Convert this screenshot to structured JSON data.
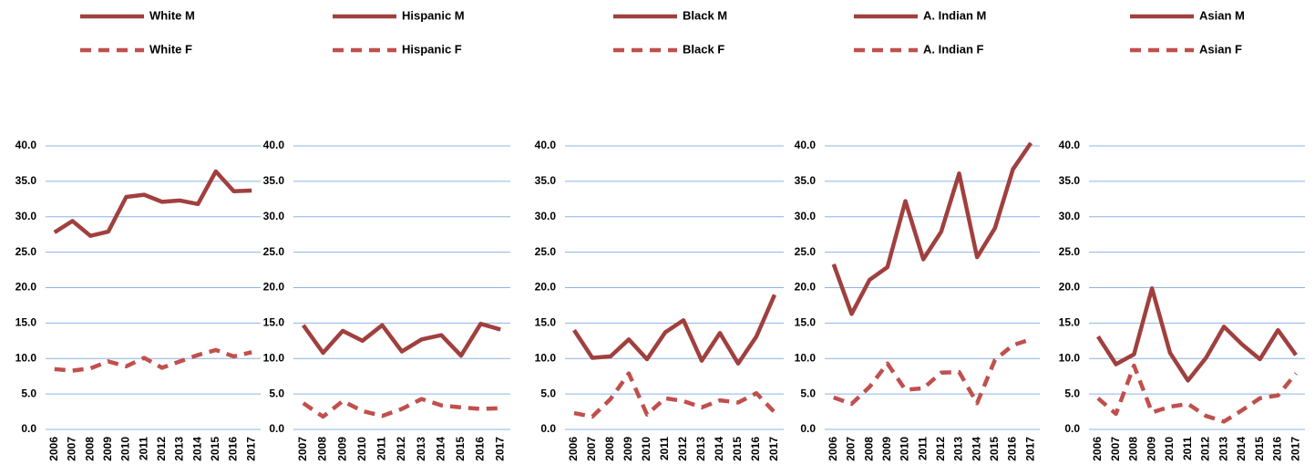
{
  "chart_data": [
    {
      "type": "line",
      "categories": [
        "2006",
        "2007",
        "2008",
        "2009",
        "2010",
        "2011",
        "2012",
        "2013",
        "2014",
        "2015",
        "2016",
        "2017"
      ],
      "series": [
        {
          "name": "White  M",
          "color": "#a0403e",
          "line_style": "solid",
          "values": [
            27.8,
            29.4,
            27.3,
            27.9,
            32.8,
            33.1,
            32.1,
            32.3,
            31.8,
            36.4,
            33.6,
            33.7
          ]
        },
        {
          "name": "White  F",
          "color": "#c0504d",
          "line_style": "dashed",
          "values": [
            8.5,
            8.3,
            8.6,
            9.6,
            8.9,
            10.1,
            8.7,
            9.6,
            10.5,
            11.2,
            10.3,
            10.9
          ]
        }
      ],
      "ylim": [
        0,
        40
      ],
      "yticks": [
        {
          "value": 0,
          "label": "0.0"
        },
        {
          "value": 5,
          "label": "5.0"
        },
        {
          "value": 10,
          "label": "10.0"
        },
        {
          "value": 15,
          "label": "15.0"
        },
        {
          "value": 20,
          "label": "20.0"
        },
        {
          "value": 25,
          "label": "25.0"
        },
        {
          "value": 30,
          "label": "30.0"
        },
        {
          "value": 35,
          "label": "35.0"
        },
        {
          "value": 40,
          "label": "40.0"
        }
      ],
      "grid": true
    },
    {
      "type": "line",
      "categories": [
        "2007",
        "2008",
        "2009",
        "2010",
        "2011",
        "2012",
        "2013",
        "2014",
        "2015",
        "2016",
        "2017"
      ],
      "series": [
        {
          "name": "Hispanic M",
          "color": "#a0403e",
          "line_style": "solid",
          "values": [
            14.7,
            10.8,
            13.9,
            12.5,
            14.7,
            11.0,
            12.7,
            13.3,
            10.4,
            14.9,
            14.1
          ]
        },
        {
          "name": "Hispanic F",
          "color": "#c0504d",
          "line_style": "dashed",
          "values": [
            3.7,
            1.8,
            4.0,
            2.6,
            1.9,
            2.9,
            4.3,
            3.4,
            3.1,
            2.9,
            3.0
          ]
        }
      ],
      "ylim": [
        0,
        40
      ],
      "yticks": [
        {
          "value": 0,
          "label": "0.0"
        },
        {
          "value": 5,
          "label": "5.0"
        },
        {
          "value": 10,
          "label": "10.0"
        },
        {
          "value": 15,
          "label": "15.0"
        },
        {
          "value": 20,
          "label": "20.0"
        },
        {
          "value": 25,
          "label": "25.0"
        },
        {
          "value": 30,
          "label": "30.0"
        },
        {
          "value": 35,
          "label": "35.0"
        },
        {
          "value": 40,
          "label": "40.0"
        }
      ],
      "grid": true
    },
    {
      "type": "line",
      "categories": [
        "2006",
        "2007",
        "2008",
        "2009",
        "2010",
        "2011",
        "2012",
        "2013",
        "2014",
        "2015",
        "2016",
        "2017"
      ],
      "series": [
        {
          "name": "Black  M",
          "color": "#a0403e",
          "line_style": "solid",
          "values": [
            14.0,
            10.1,
            10.3,
            12.7,
            9.9,
            13.7,
            15.4,
            9.7,
            13.6,
            9.3,
            13.1,
            19.0
          ]
        },
        {
          "name": "Black  F",
          "color": "#c0504d",
          "line_style": "dashed",
          "values": [
            2.3,
            1.8,
            4.3,
            7.9,
            2.1,
            4.4,
            4.0,
            3.1,
            4.1,
            3.8,
            5.1,
            2.4
          ]
        }
      ],
      "ylim": [
        0,
        40
      ],
      "yticks": [
        {
          "value": 0,
          "label": "0.0"
        },
        {
          "value": 5,
          "label": "5.0"
        },
        {
          "value": 10,
          "label": "10.0"
        },
        {
          "value": 15,
          "label": "15.0"
        },
        {
          "value": 20,
          "label": "20.0"
        },
        {
          "value": 25,
          "label": "25.0"
        },
        {
          "value": 30,
          "label": "30.0"
        },
        {
          "value": 35,
          "label": "35.0"
        },
        {
          "value": 40,
          "label": "40.0"
        }
      ],
      "grid": true
    },
    {
      "type": "line",
      "categories": [
        "2006",
        "2007",
        "2008",
        "2009",
        "2010",
        "2011",
        "2012",
        "2013",
        "2014",
        "2015",
        "2016",
        "2017"
      ],
      "series": [
        {
          "name": "A. Indian  M",
          "color": "#a0403e",
          "line_style": "solid",
          "values": [
            23.3,
            16.3,
            21.1,
            22.9,
            32.2,
            24.0,
            27.9,
            36.1,
            24.3,
            28.4,
            36.7,
            40.4
          ]
        },
        {
          "name": "A. Indian  F",
          "color": "#c0504d",
          "line_style": "dashed",
          "values": [
            4.5,
            3.6,
            6.0,
            9.3,
            5.6,
            5.8,
            8.0,
            8.1,
            3.7,
            9.8,
            11.9,
            12.7
          ]
        }
      ],
      "ylim": [
        0,
        40
      ],
      "yticks": [
        {
          "value": 0,
          "label": "0.0"
        },
        {
          "value": 5,
          "label": "5.0"
        },
        {
          "value": 10,
          "label": "10.0"
        },
        {
          "value": 15,
          "label": "15.0"
        },
        {
          "value": 20,
          "label": "20.0"
        },
        {
          "value": 25,
          "label": "25.0"
        },
        {
          "value": 30,
          "label": "30.0"
        },
        {
          "value": 35,
          "label": "35.0"
        },
        {
          "value": 40,
          "label": "40.0"
        }
      ],
      "grid": true
    },
    {
      "type": "line",
      "categories": [
        "2006",
        "2007",
        "2008",
        "2009",
        "2010",
        "2011",
        "2012",
        "2013",
        "2014",
        "2015",
        "2016",
        "2017"
      ],
      "series": [
        {
          "name": "Asian  M",
          "color": "#a0403e",
          "line_style": "solid",
          "values": [
            13.1,
            9.2,
            10.6,
            19.9,
            10.8,
            6.9,
            10.1,
            14.5,
            12.0,
            9.9,
            14.0,
            10.5
          ]
        },
        {
          "name": "Asian  F",
          "color": "#c0504d",
          "line_style": "dashed",
          "values": [
            4.4,
            2.2,
            9.0,
            2.4,
            3.2,
            3.6,
            1.9,
            1.1,
            2.7,
            4.4,
            4.8,
            7.9
          ]
        }
      ],
      "ylim": [
        0,
        40
      ],
      "yticks": [
        {
          "value": 0,
          "label": "0.0"
        },
        {
          "value": 5,
          "label": "5.0"
        },
        {
          "value": 10,
          "label": "10.0"
        },
        {
          "value": 15,
          "label": "15.0"
        },
        {
          "value": 20,
          "label": "20.0"
        },
        {
          "value": 25,
          "label": "25.0"
        },
        {
          "value": 30,
          "label": "30.0"
        },
        {
          "value": 35,
          "label": "35.0"
        },
        {
          "value": 40,
          "label": "40.0"
        }
      ],
      "grid": true
    }
  ]
}
